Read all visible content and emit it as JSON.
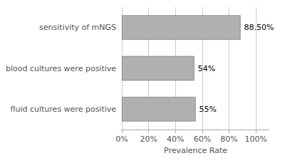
{
  "chart_data": {
    "type": "bar",
    "orientation": "horizontal",
    "categories": [
      "fluid cultures were positive",
      "blood cultures were positive",
      "sensitivity of mNGS"
    ],
    "values": [
      55,
      54,
      88.5
    ],
    "value_labels": [
      "55%",
      "54%",
      "88.50%"
    ],
    "data_labels": true,
    "color": "#b0b0b0",
    "xlabel": "Prevalence Rate",
    "xlim": [
      0,
      110
    ],
    "xticks": [
      {
        "value": 0,
        "label": "0%"
      },
      {
        "value": 20,
        "label": "20%"
      },
      {
        "value": 40,
        "label": "40%"
      },
      {
        "value": 60,
        "label": "60%"
      },
      {
        "value": 80,
        "label": "80%"
      },
      {
        "value": 100,
        "label": "100%"
      }
    ],
    "grid": true
  }
}
